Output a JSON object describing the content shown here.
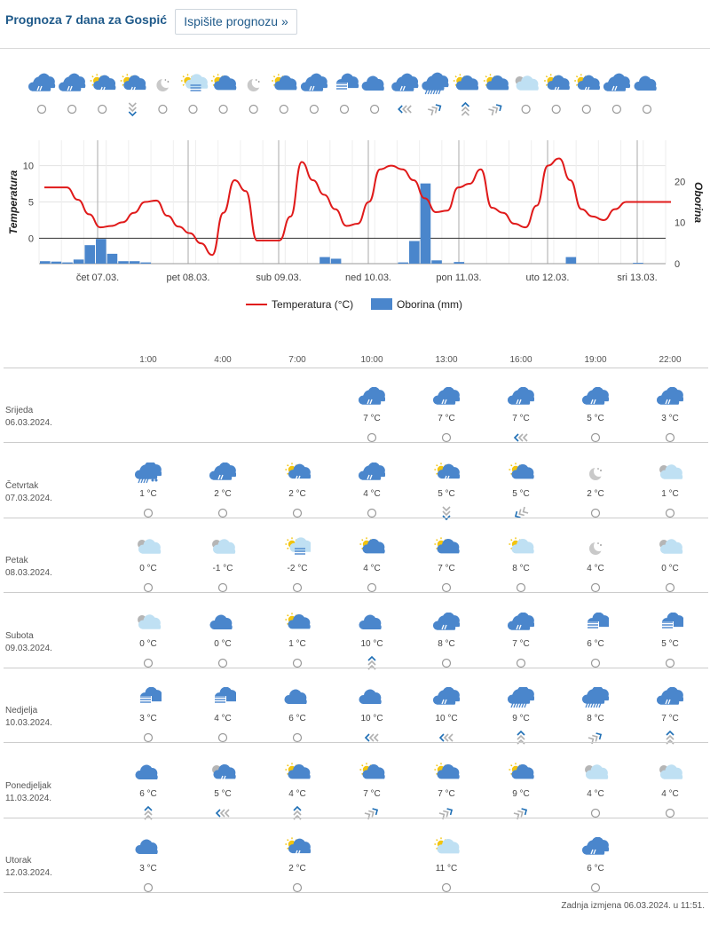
{
  "header": {
    "title": "Prognoza 7 dana za Gospić",
    "print_button": "Ispišite prognozu »"
  },
  "top_strip": [
    {
      "icon": "rain-cloud-icon",
      "wind": "calm"
    },
    {
      "icon": "rain-cloud-icon",
      "wind": "calm"
    },
    {
      "icon": "sun-rain-cloud-icon",
      "wind": "calm"
    },
    {
      "icon": "sun-rain-cloud-icon",
      "wind": "down"
    },
    {
      "icon": "moon-icon",
      "wind": "calm"
    },
    {
      "icon": "sun-fog-icon",
      "wind": "calm"
    },
    {
      "icon": "sun-cloud-icon",
      "wind": "calm"
    },
    {
      "icon": "moon-icon",
      "wind": "calm"
    },
    {
      "icon": "sun-cloud-icon",
      "wind": "calm"
    },
    {
      "icon": "rain-cloud-icon",
      "wind": "calm"
    },
    {
      "icon": "fog-cloud-icon",
      "wind": "calm"
    },
    {
      "icon": "cloud-icon",
      "wind": "calm"
    },
    {
      "icon": "rain-cloud-icon",
      "wind": "left"
    },
    {
      "icon": "heavy-rain-icon",
      "wind": "right"
    },
    {
      "icon": "sun-cloud-icon",
      "wind": "up"
    },
    {
      "icon": "sun-cloud-icon",
      "wind": "right"
    },
    {
      "icon": "cloud-light-icon",
      "wind": "calm"
    },
    {
      "icon": "sun-rain-cloud-icon",
      "wind": "calm"
    },
    {
      "icon": "sun-rain-cloud-icon",
      "wind": "calm"
    },
    {
      "icon": "rain-cloud-icon",
      "wind": "calm"
    },
    {
      "icon": "cloud-icon",
      "wind": "calm"
    }
  ],
  "chart_data": {
    "type": "line",
    "ylabel": "Temperatura",
    "y2label": "Oborina",
    "ylim": [
      -3.5,
      13.5
    ],
    "y_ticks": [
      "10",
      "5",
      "0"
    ],
    "y2lim": [
      0,
      30
    ],
    "y2_ticks": [
      "20",
      "10",
      "0"
    ],
    "x_ticks": [
      "čet 07.03.",
      "pet 08.03.",
      "sub 09.03.",
      "ned 10.03.",
      "pon 11.03.",
      "uto 12.03.",
      "sri 13.03."
    ],
    "legend": [
      "Temperatura (°C)",
      "Oborina (mm)"
    ],
    "colors": {
      "temperature": "#e01a1a",
      "precipitation": "#4a86cc"
    },
    "series": [
      {
        "name": "Temperatura (°C)",
        "x": [
          0,
          1,
          2,
          3,
          4,
          5,
          6,
          7,
          8,
          9,
          10,
          11,
          12,
          13,
          14,
          15,
          16,
          17,
          18,
          19,
          20,
          21,
          22,
          23,
          24,
          25,
          26,
          27,
          28,
          29,
          30,
          31,
          32,
          33,
          34,
          35,
          36,
          37,
          38,
          39,
          40,
          41,
          42,
          43,
          44,
          45,
          46,
          47,
          48,
          49,
          50,
          51,
          52,
          53,
          54,
          55,
          56
        ],
        "values": [
          7,
          7,
          7,
          5.3,
          3.3,
          1.5,
          1.7,
          2.2,
          3.5,
          5.0,
          5.2,
          3.1,
          1.6,
          0.7,
          -0.7,
          -2.3,
          3.5,
          8,
          6.5,
          -0.3,
          -0.3,
          -0.3,
          3,
          10.5,
          8,
          6,
          4,
          1.7,
          2,
          5,
          9.5,
          10,
          9.5,
          8,
          5.5,
          3.6,
          3.8,
          7,
          7.5,
          9.5,
          4.2,
          3.5,
          2,
          1.5,
          4.5,
          10,
          11,
          8,
          4,
          3,
          2.5,
          4,
          5,
          5,
          5,
          5,
          5
        ]
      },
      {
        "name": "Oborina (mm)",
        "x": [
          0,
          1,
          2,
          3,
          4,
          5,
          6,
          7,
          8,
          9,
          10,
          11,
          12,
          13,
          14,
          15,
          16,
          17,
          18,
          19,
          20,
          21,
          22,
          23,
          24,
          25,
          26,
          27,
          28,
          29,
          30,
          31,
          32,
          33,
          34,
          35,
          36,
          37,
          38,
          39,
          40,
          41,
          42,
          43,
          44,
          45,
          46,
          47,
          48,
          49,
          50,
          51,
          52,
          53,
          54,
          55,
          56
        ],
        "values": [
          0.6,
          0.5,
          0.3,
          1.0,
          4.5,
          6.0,
          2.4,
          0.6,
          0.6,
          0.3,
          0,
          0,
          0,
          0,
          0,
          0,
          0,
          0,
          0,
          0,
          0,
          0,
          0,
          0,
          0,
          1.6,
          1.2,
          0,
          0,
          0,
          0,
          0,
          0.3,
          5.5,
          19.5,
          0.8,
          0,
          0.4,
          0,
          0,
          0,
          0,
          0,
          0,
          0,
          0,
          0,
          1.6,
          0,
          0,
          0,
          0,
          0,
          0.2,
          0,
          0,
          0
        ]
      }
    ]
  },
  "table": {
    "hours": [
      "1:00",
      "4:00",
      "7:00",
      "10:00",
      "13:00",
      "16:00",
      "19:00",
      "22:00"
    ],
    "days": [
      {
        "name": "Srijeda",
        "date": "06.03.2024.",
        "cells": [
          null,
          null,
          null,
          {
            "icon": "rain-cloud-icon",
            "temp": "7 °C",
            "wind": "calm"
          },
          {
            "icon": "rain-cloud-icon",
            "temp": "7 °C",
            "wind": "calm"
          },
          {
            "icon": "rain-cloud-icon",
            "temp": "7 °C",
            "wind": "left"
          },
          {
            "icon": "rain-cloud-icon",
            "temp": "5 °C",
            "wind": "calm"
          },
          {
            "icon": "rain-cloud-icon",
            "temp": "3 °C",
            "wind": "calm"
          }
        ]
      },
      {
        "name": "Četvrtak",
        "date": "07.03.2024.",
        "cells": [
          {
            "icon": "sleet-icon",
            "temp": "1 °C",
            "wind": "calm"
          },
          {
            "icon": "rain-cloud-icon",
            "temp": "2 °C",
            "wind": "calm"
          },
          {
            "icon": "sun-rain-cloud-icon",
            "temp": "2 °C",
            "wind": "calm"
          },
          {
            "icon": "rain-cloud-icon",
            "temp": "4 °C",
            "wind": "calm"
          },
          {
            "icon": "sun-rain-cloud-icon",
            "temp": "5 °C",
            "wind": "down"
          },
          {
            "icon": "sun-cloud-icon",
            "temp": "5 °C",
            "wind": "down-left"
          },
          {
            "icon": "moon-icon",
            "temp": "2 °C",
            "wind": "calm"
          },
          {
            "icon": "cloud-light-icon",
            "temp": "1 °C",
            "wind": "calm"
          }
        ]
      },
      {
        "name": "Petak",
        "date": "08.03.2024.",
        "cells": [
          {
            "icon": "cloud-light-icon",
            "temp": "0 °C",
            "wind": "calm"
          },
          {
            "icon": "cloud-light-icon",
            "temp": "-1 °C",
            "wind": "calm"
          },
          {
            "icon": "sun-fog-icon",
            "temp": "-2 °C",
            "wind": "calm"
          },
          {
            "icon": "sun-cloud-icon",
            "temp": "4 °C",
            "wind": "calm"
          },
          {
            "icon": "sun-cloud-icon",
            "temp": "7 °C",
            "wind": "calm"
          },
          {
            "icon": "sun-cloud-light-icon",
            "temp": "8 °C",
            "wind": "calm"
          },
          {
            "icon": "moon-icon",
            "temp": "4 °C",
            "wind": "calm"
          },
          {
            "icon": "cloud-light-icon",
            "temp": "0 °C",
            "wind": "calm"
          }
        ]
      },
      {
        "name": "Subota",
        "date": "09.03.2024.",
        "cells": [
          {
            "icon": "cloud-light-icon",
            "temp": "0 °C",
            "wind": "calm"
          },
          {
            "icon": "cloud-icon",
            "temp": "0 °C",
            "wind": "calm"
          },
          {
            "icon": "sun-cloud-icon",
            "temp": "1 °C",
            "wind": "calm"
          },
          {
            "icon": "cloud-icon",
            "temp": "10 °C",
            "wind": "up"
          },
          {
            "icon": "rain-cloud-icon",
            "temp": "8 °C",
            "wind": "calm"
          },
          {
            "icon": "rain-cloud-icon",
            "temp": "7 °C",
            "wind": "calm"
          },
          {
            "icon": "fog-cloud-icon",
            "temp": "6 °C",
            "wind": "calm"
          },
          {
            "icon": "fog-cloud-icon",
            "temp": "5 °C",
            "wind": "calm"
          }
        ]
      },
      {
        "name": "Nedjelja",
        "date": "10.03.2024.",
        "cells": [
          {
            "icon": "fog-cloud-icon",
            "temp": "3 °C",
            "wind": "calm"
          },
          {
            "icon": "fog-cloud-icon",
            "temp": "4 °C",
            "wind": "calm"
          },
          {
            "icon": "cloud-icon",
            "temp": "6 °C",
            "wind": "calm"
          },
          {
            "icon": "cloud-icon",
            "temp": "10 °C",
            "wind": "left"
          },
          {
            "icon": "rain-cloud-icon",
            "temp": "10 °C",
            "wind": "left"
          },
          {
            "icon": "heavy-rain-icon",
            "temp": "9 °C",
            "wind": "up"
          },
          {
            "icon": "heavy-rain-icon",
            "temp": "8 °C",
            "wind": "right"
          },
          {
            "icon": "rain-cloud-icon",
            "temp": "7 °C",
            "wind": "up"
          }
        ]
      },
      {
        "name": "Ponedjeljak",
        "date": "11.03.2024.",
        "cells": [
          {
            "icon": "cloud-icon",
            "temp": "6 °C",
            "wind": "up"
          },
          {
            "icon": "cloud-rain-light-icon",
            "temp": "5 °C",
            "wind": "left"
          },
          {
            "icon": "sun-cloud-icon",
            "temp": "4 °C",
            "wind": "up"
          },
          {
            "icon": "sun-cloud-icon",
            "temp": "7 °C",
            "wind": "right"
          },
          {
            "icon": "sun-cloud-icon",
            "temp": "7 °C",
            "wind": "right"
          },
          {
            "icon": "sun-cloud-icon",
            "temp": "9 °C",
            "wind": "right"
          },
          {
            "icon": "cloud-light-icon",
            "temp": "4 °C",
            "wind": "calm"
          },
          {
            "icon": "cloud-light-icon",
            "temp": "4 °C",
            "wind": "calm"
          }
        ]
      },
      {
        "name": "Utorak",
        "date": "12.03.2024.",
        "cells": [
          {
            "icon": "cloud-icon",
            "temp": "3 °C",
            "wind": "calm"
          },
          null,
          {
            "icon": "sun-rain-cloud-icon",
            "temp": "2 °C",
            "wind": "calm"
          },
          null,
          {
            "icon": "sun-cloud-light-icon",
            "temp": "11 °C",
            "wind": "calm"
          },
          null,
          {
            "icon": "rain-cloud-icon",
            "temp": "6 °C",
            "wind": "calm"
          },
          null
        ]
      }
    ]
  },
  "footer": "Zadnja izmjena 06.03.2024. u 11:51."
}
